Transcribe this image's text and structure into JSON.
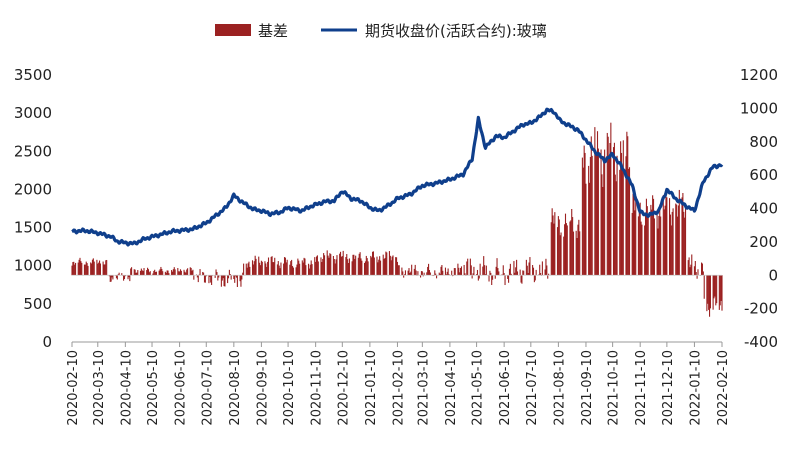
{
  "chart_data": {
    "type": "bar+line",
    "title": "",
    "legend": {
      "placement": "top",
      "items": [
        {
          "label": "基差",
          "kind": "bar",
          "color": "#9b2121"
        },
        {
          "label": "期货收盘价(活跃合约):玻璃",
          "kind": "line",
          "color": "#0f3f8c"
        }
      ]
    },
    "colors": {
      "bar": "#9b2121",
      "line": "#0f3f8c"
    },
    "y_left": {
      "min": 0,
      "max": 3500,
      "step": 500,
      "tick_labels": [
        "0",
        "500",
        "1000",
        "1500",
        "2000",
        "2500",
        "3000",
        "3500"
      ]
    },
    "y_right": {
      "min": -400,
      "max": 1200,
      "step": 200,
      "tick_labels": [
        "-400",
        "-200",
        "0",
        "200",
        "400",
        "600",
        "800",
        "1000",
        "1200"
      ]
    },
    "x_axis": {
      "start": "2020-02-10",
      "end": "2022-02-10",
      "tick_labels": [
        "2020-02-10",
        "2020-03-10",
        "2020-04-10",
        "2020-05-10",
        "2020-06-10",
        "2020-07-10",
        "2020-08-10",
        "2020-09-10",
        "2020-10-10",
        "2020-11-10",
        "2020-12-10",
        "2021-01-10",
        "2021-02-10",
        "2021-03-10",
        "2021-04-10",
        "2021-05-10",
        "2021-06-10",
        "2021-07-10",
        "2021-08-10",
        "2021-09-10",
        "2021-10-10",
        "2021-11-10",
        "2021-12-10",
        "2022-01-10",
        "2022-02-10"
      ]
    },
    "series": [
      {
        "name": "期货收盘价(活跃合约):玻璃",
        "type": "line",
        "axis": "left",
        "points": [
          [
            "2020-02-10",
            1450
          ],
          [
            "2020-02-25",
            1460
          ],
          [
            "2020-03-10",
            1430
          ],
          [
            "2020-03-25",
            1380
          ],
          [
            "2020-04-01",
            1320
          ],
          [
            "2020-04-10",
            1300
          ],
          [
            "2020-04-20",
            1290
          ],
          [
            "2020-05-01",
            1350
          ],
          [
            "2020-05-10",
            1380
          ],
          [
            "2020-05-20",
            1410
          ],
          [
            "2020-06-01",
            1450
          ],
          [
            "2020-06-10",
            1460
          ],
          [
            "2020-06-25",
            1480
          ],
          [
            "2020-07-10",
            1560
          ],
          [
            "2020-07-20",
            1650
          ],
          [
            "2020-08-01",
            1760
          ],
          [
            "2020-08-10",
            1920
          ],
          [
            "2020-08-20",
            1830
          ],
          [
            "2020-09-01",
            1740
          ],
          [
            "2020-09-10",
            1720
          ],
          [
            "2020-09-20",
            1680
          ],
          [
            "2020-10-01",
            1700
          ],
          [
            "2020-10-10",
            1760
          ],
          [
            "2020-10-25",
            1720
          ],
          [
            "2020-11-05",
            1780
          ],
          [
            "2020-11-20",
            1840
          ],
          [
            "2020-12-01",
            1850
          ],
          [
            "2020-12-10",
            1980
          ],
          [
            "2020-12-20",
            1880
          ],
          [
            "2020-12-31",
            1850
          ],
          [
            "2021-01-10",
            1760
          ],
          [
            "2021-01-20",
            1720
          ],
          [
            "2021-02-01",
            1800
          ],
          [
            "2021-02-10",
            1880
          ],
          [
            "2021-02-25",
            1940
          ],
          [
            "2021-03-10",
            2050
          ],
          [
            "2021-03-25",
            2080
          ],
          [
            "2021-04-10",
            2130
          ],
          [
            "2021-04-25",
            2200
          ],
          [
            "2021-05-05",
            2400
          ],
          [
            "2021-05-12",
            2920
          ],
          [
            "2021-05-20",
            2550
          ],
          [
            "2021-06-01",
            2700
          ],
          [
            "2021-06-10",
            2680
          ],
          [
            "2021-06-20",
            2760
          ],
          [
            "2021-07-01",
            2850
          ],
          [
            "2021-07-10",
            2870
          ],
          [
            "2021-07-20",
            2950
          ],
          [
            "2021-07-28",
            3040
          ],
          [
            "2021-08-05",
            3020
          ],
          [
            "2021-08-12",
            2900
          ],
          [
            "2021-08-20",
            2850
          ],
          [
            "2021-09-01",
            2780
          ],
          [
            "2021-09-10",
            2650
          ],
          [
            "2021-09-20",
            2500
          ],
          [
            "2021-10-01",
            2380
          ],
          [
            "2021-10-10",
            2460
          ],
          [
            "2021-10-20",
            2300
          ],
          [
            "2021-11-01",
            2050
          ],
          [
            "2021-11-10",
            1700
          ],
          [
            "2021-11-20",
            1660
          ],
          [
            "2021-12-01",
            1720
          ],
          [
            "2021-12-10",
            2000
          ],
          [
            "2021-12-20",
            1880
          ],
          [
            "2022-01-01",
            1780
          ],
          [
            "2022-01-10",
            1720
          ],
          [
            "2022-01-20",
            2100
          ],
          [
            "2022-01-31",
            2300
          ],
          [
            "2022-02-10",
            2320
          ]
        ]
      },
      {
        "name": "基差",
        "type": "bar",
        "axis": "right",
        "bars": [
          {
            "start": "2020-02-10",
            "end": "2020-03-20",
            "base": 80,
            "amp": 25
          },
          {
            "start": "2020-03-21",
            "end": "2020-04-15",
            "base": -15,
            "amp": 35
          },
          {
            "start": "2020-04-16",
            "end": "2020-06-25",
            "base": 30,
            "amp": 20
          },
          {
            "start": "2020-06-26",
            "end": "2020-08-20",
            "base": -20,
            "amp": 60
          },
          {
            "start": "2020-08-21",
            "end": "2020-11-10",
            "base": 80,
            "amp": 40
          },
          {
            "start": "2020-11-11",
            "end": "2021-02-10",
            "base": 110,
            "amp": 40
          },
          {
            "start": "2021-02-11",
            "end": "2021-04-25",
            "base": 25,
            "amp": 45
          },
          {
            "start": "2021-04-26",
            "end": "2021-07-30",
            "base": 25,
            "amp": 90
          },
          {
            "start": "2021-07-31",
            "end": "2021-09-05",
            "base": 320,
            "amp": 100
          },
          {
            "start": "2021-09-06",
            "end": "2021-10-31",
            "base": 720,
            "amp": 200
          },
          {
            "start": "2021-11-01",
            "end": "2021-12-31",
            "base": 400,
            "amp": 120
          },
          {
            "start": "2022-01-01",
            "end": "2022-01-20",
            "base": 50,
            "amp": 80
          },
          {
            "start": "2022-01-21",
            "end": "2022-02-10",
            "base": -180,
            "amp": 70
          }
        ]
      }
    ]
  }
}
